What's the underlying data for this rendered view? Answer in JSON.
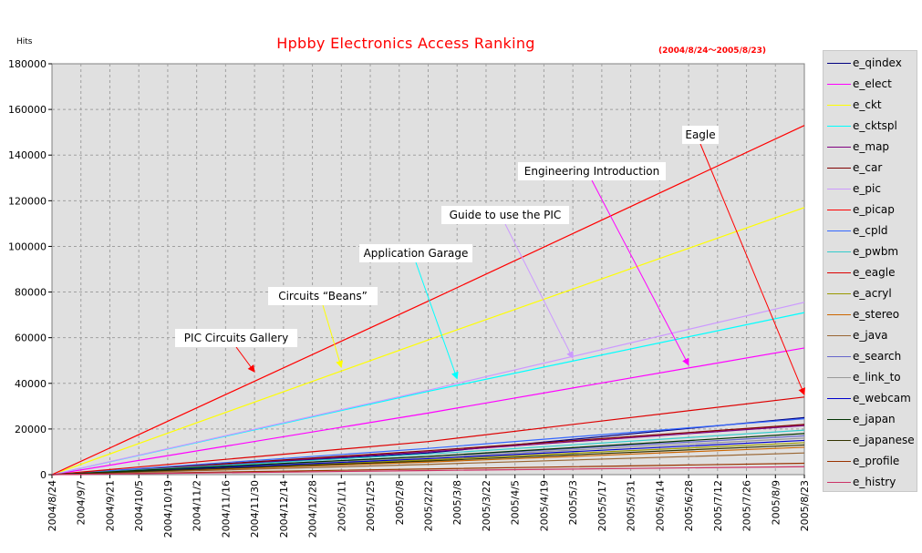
{
  "header": {
    "title": "Hpbby Electronics Access Ranking",
    "date_range": "(2004/8/24～2005/8/23)",
    "y_unit": "Hits"
  },
  "chart_data": {
    "type": "line",
    "title": "Hpbby Electronics Access Ranking",
    "subtitle": "(2004/8/24～2005/8/23)",
    "ylabel": "Hits",
    "xlabel": "",
    "ylim": [
      0,
      180000
    ],
    "y_ticks": [
      0,
      20000,
      40000,
      60000,
      80000,
      100000,
      120000,
      140000,
      160000,
      180000
    ],
    "x_ticks": [
      "2004/8/24",
      "2004/9/7",
      "2004/9/21",
      "2004/10/5",
      "2004/10/19",
      "2004/11/2",
      "2004/11/16",
      "2004/11/30",
      "2004/12/14",
      "2004/12/28",
      "2005/1/11",
      "2005/1/25",
      "2005/2/8",
      "2005/2/22",
      "2005/3/8",
      "2005/3/22",
      "2005/4/5",
      "2005/4/19",
      "2005/5/3",
      "2005/5/17",
      "2005/5/31",
      "2005/6/14",
      "2005/6/28",
      "2005/7/12",
      "2005/7/26",
      "2005/8/9",
      "2005/8/23"
    ],
    "grid": true,
    "legend_position": "right",
    "plot_background": "#e0e0e0",
    "series": [
      {
        "name": "e_qindex",
        "color": "#000080",
        "values": [
          0,
          9500,
          25000
        ]
      },
      {
        "name": "e_elect",
        "color": "#ff00ff",
        "values": [
          0,
          27000,
          55500
        ]
      },
      {
        "name": "e_ckt",
        "color": "#ffff00",
        "values": [
          0,
          59000,
          117000
        ]
      },
      {
        "name": "e_cktspl",
        "color": "#00ffff",
        "values": [
          0,
          36500,
          71000
        ]
      },
      {
        "name": "e_map",
        "color": "#800080",
        "values": [
          0,
          10000,
          21500
        ]
      },
      {
        "name": "e_car",
        "color": "#800000",
        "values": [
          0,
          10500,
          22000
        ]
      },
      {
        "name": "e_pic",
        "color": "#cc99ff",
        "values": [
          0,
          37000,
          75500
        ]
      },
      {
        "name": "e_picap",
        "color": "#ff0000",
        "values": [
          0,
          76000,
          153000
        ]
      },
      {
        "name": "e_cpld",
        "color": "#3366ff",
        "values": [
          0,
          11500,
          24500
        ]
      },
      {
        "name": "e_pwbm",
        "color": "#33cccc",
        "values": [
          0,
          9000,
          19500
        ]
      },
      {
        "name": "e_eagle",
        "color": "#dd0000",
        "values": [
          0,
          14500,
          34000
        ]
      },
      {
        "name": "e_acryl",
        "color": "#999900",
        "values": [
          0,
          6500,
          14000
        ]
      },
      {
        "name": "e_stereo",
        "color": "#cc6600",
        "values": [
          0,
          5500,
          12000
        ]
      },
      {
        "name": "e_java",
        "color": "#996633",
        "values": [
          0,
          4500,
          9500
        ]
      },
      {
        "name": "e_search",
        "color": "#6666cc",
        "values": [
          0,
          8000,
          17000
        ]
      },
      {
        "name": "e_link_to",
        "color": "#999999",
        "values": [
          0,
          7500,
          16000
        ]
      },
      {
        "name": "e_webcam",
        "color": "#0000cc",
        "values": [
          0,
          7000,
          15000
        ]
      },
      {
        "name": "e_japan",
        "color": "#003300",
        "values": [
          0,
          8000,
          18000
        ]
      },
      {
        "name": "e_japanese",
        "color": "#333300",
        "values": [
          0,
          6000,
          13000
        ]
      },
      {
        "name": "e_profile",
        "color": "#993300",
        "values": [
          0,
          2500,
          5000
        ]
      },
      {
        "name": "e_histry",
        "color": "#cc3366",
        "values": [
          0,
          1800,
          3500
        ]
      }
    ],
    "annotations": [
      {
        "text": "PIC Circuits Gallery",
        "color": "#ff0000",
        "point": [
          "2004/11/30",
          45000
        ]
      },
      {
        "text": "Circuits “Beans”",
        "color": "#ffff00",
        "point": [
          "2005/1/11",
          47000
        ]
      },
      {
        "text": "Application Garage",
        "color": "#00ffff",
        "point": [
          "2005/3/8",
          42000
        ]
      },
      {
        "text": "Guide to use the PIC",
        "color": "#cc99ff",
        "point": [
          "2005/5/3",
          51000
        ]
      },
      {
        "text": "Engineering Introduction",
        "color": "#ff00ff",
        "point": [
          "2005/6/28",
          48000
        ]
      },
      {
        "text": "Eagle",
        "color": "#ff0000",
        "point": [
          "2005/8/23",
          35000
        ]
      }
    ]
  }
}
